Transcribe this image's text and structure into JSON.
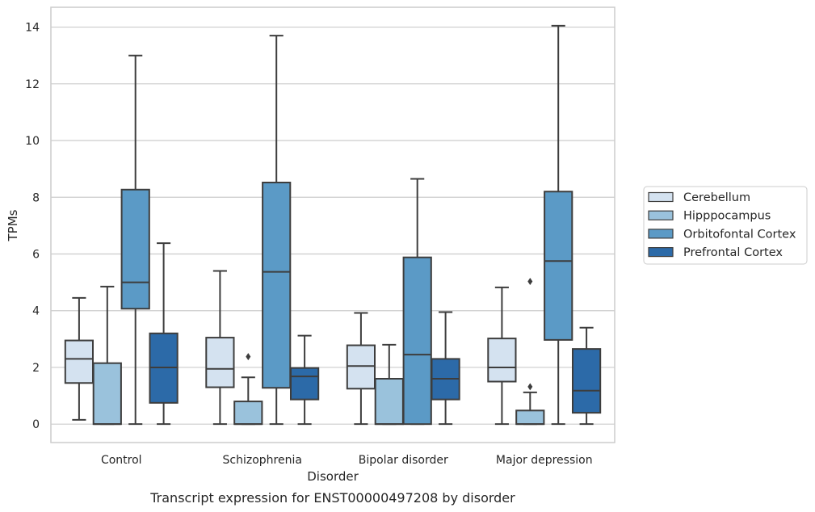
{
  "chart_data": {
    "type": "box",
    "title": "",
    "caption": "Transcript expression for ENST00000497208 by disorder",
    "xlabel": "Disorder",
    "ylabel": "TPMs",
    "ylim": [
      -0.65,
      14.7
    ],
    "yticks": [
      0,
      2,
      4,
      6,
      8,
      10,
      12,
      14
    ],
    "grid": "horizontal",
    "legend_position": "right",
    "categories": [
      "Control",
      "Schizophrenia",
      "Bipolar disorder",
      "Major depression"
    ],
    "series": [
      {
        "name": "Cerebellum",
        "color": "#d4e2f0",
        "boxes": [
          {
            "min": 0.15,
            "q1": 1.45,
            "median": 2.3,
            "q3": 2.95,
            "max": 4.45,
            "outliers": []
          },
          {
            "min": 0.0,
            "q1": 1.3,
            "median": 1.95,
            "q3": 3.05,
            "max": 5.4,
            "outliers": []
          },
          {
            "min": 0.0,
            "q1": 1.25,
            "median": 2.05,
            "q3": 2.78,
            "max": 3.92,
            "outliers": []
          },
          {
            "min": 0.0,
            "q1": 1.5,
            "median": 2.0,
            "q3": 3.02,
            "max": 4.82,
            "outliers": []
          }
        ]
      },
      {
        "name": "Hipppocampus",
        "color": "#9ac2dc",
        "boxes": [
          {
            "min": 0.0,
            "q1": 0.0,
            "median": 0.0,
            "q3": 2.15,
            "max": 4.85,
            "outliers": []
          },
          {
            "min": 0.0,
            "q1": 0.0,
            "median": 0.0,
            "q3": 0.8,
            "max": 1.65,
            "outliers": [
              2.38
            ]
          },
          {
            "min": 0.0,
            "q1": 0.0,
            "median": 0.0,
            "q3": 1.6,
            "max": 2.8,
            "outliers": []
          },
          {
            "min": 0.0,
            "q1": 0.0,
            "median": 0.0,
            "q3": 0.48,
            "max": 1.12,
            "outliers": [
              1.32,
              5.03
            ]
          }
        ]
      },
      {
        "name": "Orbitofontal Cortex",
        "color": "#5b9ac6",
        "boxes": [
          {
            "min": 0.0,
            "q1": 4.07,
            "median": 5.0,
            "q3": 8.27,
            "max": 13.0,
            "outliers": []
          },
          {
            "min": 0.0,
            "q1": 1.28,
            "median": 5.37,
            "q3": 8.52,
            "max": 13.7,
            "outliers": []
          },
          {
            "min": 0.0,
            "q1": 0.0,
            "median": 2.45,
            "q3": 5.88,
            "max": 8.65,
            "outliers": []
          },
          {
            "min": 0.0,
            "q1": 2.97,
            "median": 5.75,
            "q3": 8.2,
            "max": 14.05,
            "outliers": []
          }
        ]
      },
      {
        "name": "Prefrontal Cortex",
        "color": "#2c6aa8",
        "boxes": [
          {
            "min": 0.0,
            "q1": 0.75,
            "median": 2.0,
            "q3": 3.2,
            "max": 6.38,
            "outliers": []
          },
          {
            "min": 0.0,
            "q1": 0.87,
            "median": 1.68,
            "q3": 1.98,
            "max": 3.12,
            "outliers": []
          },
          {
            "min": 0.0,
            "q1": 0.87,
            "median": 1.6,
            "q3": 2.3,
            "max": 3.95,
            "outliers": []
          },
          {
            "min": 0.0,
            "q1": 0.4,
            "median": 1.18,
            "q3": 2.65,
            "max": 3.4,
            "outliers": []
          }
        ]
      }
    ]
  }
}
